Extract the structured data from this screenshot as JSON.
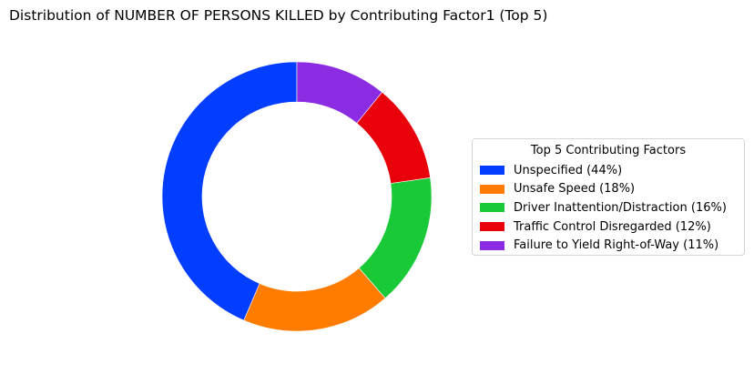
{
  "chart_data": {
    "type": "pie",
    "style": "donut",
    "title": "Distribution of NUMBER OF PERSONS KILLED by Contributing Factor1 (Top 5)",
    "legend": {
      "title": "Top 5 Contributing Factors",
      "placement": "right",
      "items": [
        "Unspecified (44%)",
        "Unsafe Speed (18%)",
        "Driver Inattention/Distraction (16%)",
        "Traffic Control Disregarded (12%)",
        "Failure to Yield Right-of-Way (11%)"
      ]
    },
    "categories": [
      "Unspecified",
      "Unsafe Speed",
      "Driver Inattention/Distraction",
      "Traffic Control Disregarded",
      "Failure to Yield Right-of-Way"
    ],
    "values": [
      44,
      18,
      16,
      12,
      11
    ],
    "colors": [
      "#023eff",
      "#ff7c00",
      "#1ac938",
      "#e8000b",
      "#8b2be2"
    ]
  }
}
